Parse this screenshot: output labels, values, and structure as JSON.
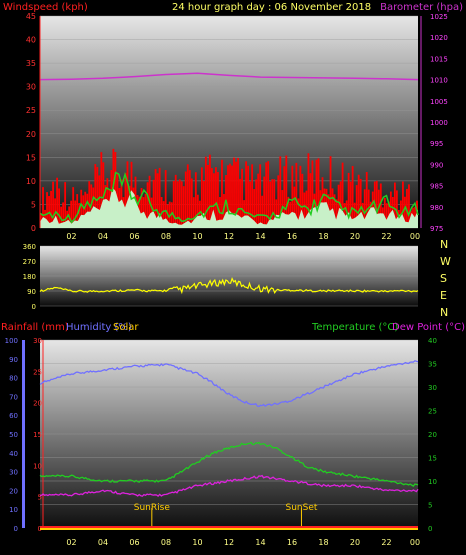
{
  "header": {
    "left_label": "Windspeed (kph)",
    "title": "24 hour graph day : 06 November 2018",
    "right_label": "Barometer (hpa)"
  },
  "colors": {
    "wind_bar": "#ff0000",
    "wind_avg": "#22cc22",
    "gust_fill": "#c8f0c8",
    "barometer": "#cc33cc",
    "direction": "#ffff00",
    "rain": "#ff2020",
    "humidity": "#7070ff",
    "solar": "#ffcc00",
    "temperature": "#22cc22",
    "dew_point": "#dd22dd",
    "x_tick_text": "#ffff88",
    "right_tick_text": "#ff44ff",
    "green_tick_text": "#22cc22",
    "plot_top": "#e6e6e6",
    "plot_bottom": "#0c0c0c"
  },
  "chart_data": [
    {
      "type": "bar",
      "panel": "wind_barometer",
      "x_ticks": [
        "02",
        "04",
        "06",
        "08",
        "10",
        "12",
        "14",
        "16",
        "18",
        "20",
        "22",
        "00"
      ],
      "left_axis": {
        "label": "Windspeed (kph)",
        "range": [
          0,
          45
        ],
        "ticks": [
          0,
          5,
          10,
          15,
          20,
          25,
          30,
          35,
          40,
          45
        ]
      },
      "right_axis": {
        "label": "Barometer (hpa)",
        "range": [
          975,
          1025
        ],
        "ticks": [
          975,
          980,
          985,
          990,
          995,
          1000,
          1005,
          1010,
          1015,
          1020,
          1025
        ]
      },
      "series": [
        {
          "name": "Windspeed (kph)",
          "kind": "bar",
          "hours": [
            0,
            1,
            2,
            3,
            4,
            5,
            6,
            7,
            8,
            9,
            10,
            11,
            12,
            13,
            14,
            15,
            16,
            17,
            18,
            19,
            20,
            21,
            22,
            23,
            24
          ],
          "values": [
            8,
            14,
            9,
            10,
            17,
            17,
            16,
            15,
            14,
            13,
            15,
            17,
            16,
            15,
            14,
            15,
            16,
            16,
            17,
            15,
            14,
            12,
            12,
            10,
            11
          ]
        },
        {
          "name": "Average",
          "kind": "line",
          "hours": [
            0,
            1,
            2,
            3,
            4,
            5,
            6,
            7,
            8,
            9,
            10,
            11,
            12,
            13,
            14,
            15,
            16,
            17,
            18,
            19,
            20,
            21,
            22,
            23,
            24
          ],
          "values": [
            3,
            3,
            2,
            5,
            6,
            9,
            7,
            5,
            3,
            2,
            3,
            4,
            5,
            3,
            2,
            3,
            5,
            4,
            6,
            4,
            3,
            4,
            5,
            3,
            4
          ]
        },
        {
          "name": "Gust",
          "kind": "area",
          "hours": [
            0,
            1,
            2,
            3,
            4,
            5,
            6,
            7,
            8,
            9,
            10,
            11,
            12,
            13,
            14,
            15,
            16,
            17,
            18,
            19,
            20,
            21,
            22,
            23,
            24
          ],
          "values": [
            2,
            2,
            1,
            3,
            4,
            7,
            5,
            3,
            2,
            1,
            2,
            3,
            3,
            2,
            1,
            2,
            3,
            3,
            4,
            3,
            2,
            3,
            3,
            2,
            3
          ]
        },
        {
          "name": "Barometer (hpa)",
          "kind": "line",
          "hours": [
            0,
            2,
            4,
            6,
            8,
            10,
            12,
            14,
            16,
            18,
            20,
            22,
            24
          ],
          "values": [
            1010.0,
            1010.1,
            1010.3,
            1010.7,
            1011.2,
            1011.5,
            1011.0,
            1010.6,
            1010.5,
            1010.4,
            1010.3,
            1010.2,
            1010.0
          ]
        }
      ]
    },
    {
      "type": "line",
      "panel": "wind_direction",
      "x_ticks": [
        "02",
        "04",
        "06",
        "08",
        "10",
        "12",
        "14",
        "16",
        "18",
        "20",
        "22",
        "00"
      ],
      "left_axis": {
        "range": [
          0,
          360
        ],
        "ticks": [
          0,
          90,
          180,
          270,
          360
        ]
      },
      "compass_labels": [
        "N",
        "W",
        "S",
        "E",
        "N"
      ],
      "series": [
        {
          "name": "Wind direction",
          "hours": [
            0,
            1,
            2,
            3,
            4,
            5,
            6,
            7,
            8,
            9,
            10,
            11,
            12,
            13,
            14,
            15,
            16,
            17,
            18,
            19,
            20,
            21,
            22,
            23,
            24
          ],
          "values": [
            90,
            110,
            88,
            88,
            90,
            92,
            95,
            90,
            92,
            100,
            120,
            135,
            150,
            125,
            105,
            95,
            95,
            92,
            90,
            92,
            90,
            90,
            88,
            92,
            90
          ]
        }
      ]
    },
    {
      "type": "line",
      "panel": "rain_humidity_temperature",
      "header": {
        "rainfall": "Rainfall (mm)",
        "humidity": "Humidity (%)",
        "solar": "Solar",
        "temperature": "Temperature (°C)",
        "dew_point": "Dew Point (°C)"
      },
      "x_ticks": [
        "02",
        "04",
        "06",
        "08",
        "10",
        "12",
        "14",
        "16",
        "18",
        "20",
        "22",
        "00"
      ],
      "humidity_axis": {
        "range": [
          0,
          100
        ],
        "ticks": [
          0,
          10,
          20,
          30,
          40,
          50,
          60,
          70,
          80,
          90,
          100
        ]
      },
      "rain_axis": {
        "range": [
          0,
          30
        ],
        "ticks": [
          0,
          5,
          10,
          15,
          20,
          25,
          30
        ]
      },
      "temperature_axis": {
        "range": [
          0,
          40
        ],
        "ticks": [
          0,
          5,
          10,
          15,
          20,
          25,
          30,
          35,
          40
        ]
      },
      "markers": [
        {
          "label": "SunRise",
          "hour": 7.1
        },
        {
          "label": "SunSet",
          "hour": 16.6
        }
      ],
      "series": [
        {
          "name": "Humidity (%)",
          "hours": [
            0,
            2,
            4,
            6,
            8,
            10,
            11,
            12,
            13,
            14,
            15,
            16,
            18,
            20,
            22,
            24
          ],
          "values": [
            77,
            82,
            84,
            86,
            87,
            82,
            77,
            71,
            67,
            65,
            66,
            68,
            75,
            82,
            86,
            89
          ]
        },
        {
          "name": "Temperature (°C)",
          "hours": [
            0,
            2,
            4,
            6,
            8,
            9,
            10,
            11,
            12,
            13,
            14,
            15,
            16,
            17,
            18,
            20,
            22,
            24
          ],
          "values": [
            11,
            11,
            10,
            10,
            10,
            12,
            14,
            16,
            17,
            18,
            18,
            17,
            15,
            13,
            12,
            11,
            10,
            9
          ]
        },
        {
          "name": "Dew Point (°C)",
          "hours": [
            0,
            2,
            4,
            6,
            8,
            10,
            12,
            14,
            16,
            18,
            20,
            22,
            24
          ],
          "values": [
            7,
            7,
            8,
            7,
            7,
            9,
            10,
            11,
            10,
            9,
            9,
            8,
            8
          ]
        },
        {
          "name": "Rainfall (mm)",
          "hours": [
            0,
            24
          ],
          "values": [
            0,
            0
          ]
        }
      ]
    }
  ]
}
